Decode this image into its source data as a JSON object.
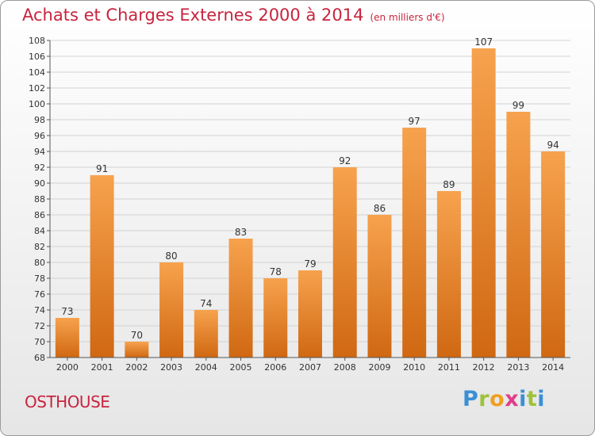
{
  "header": {
    "title": "Achats et Charges Externes 2000 à 2014",
    "subtitle": "(en milliers d'€)"
  },
  "footer": {
    "commune": "OSTHOUSE",
    "logo_text": "Proxiti"
  },
  "colors": {
    "title": "#c8243e",
    "bar_top": "#f7a24e",
    "bar_bottom": "#d06812",
    "logo_p": "#3a8fd6",
    "logo_r": "#9ec23a",
    "logo_o": "#f0a020",
    "logo_x": "#e03c8a"
  },
  "chart_data": {
    "type": "bar",
    "title": "Achats et Charges Externes 2000 à 2014",
    "subtitle": "(en milliers d'€)",
    "xlabel": "",
    "ylabel": "",
    "categories": [
      "2000",
      "2001",
      "2002",
      "2003",
      "2004",
      "2005",
      "2006",
      "2007",
      "2008",
      "2009",
      "2010",
      "2011",
      "2012",
      "2013",
      "2014"
    ],
    "values": [
      73,
      91,
      70,
      80,
      74,
      83,
      78,
      79,
      92,
      86,
      97,
      89,
      107,
      99,
      94
    ],
    "ylim": [
      68,
      108
    ],
    "yticks": [
      68,
      70,
      72,
      74,
      76,
      78,
      80,
      82,
      84,
      86,
      88,
      90,
      92,
      94,
      96,
      98,
      100,
      102,
      104,
      106,
      108
    ],
    "grid": true,
    "legend": "none"
  }
}
